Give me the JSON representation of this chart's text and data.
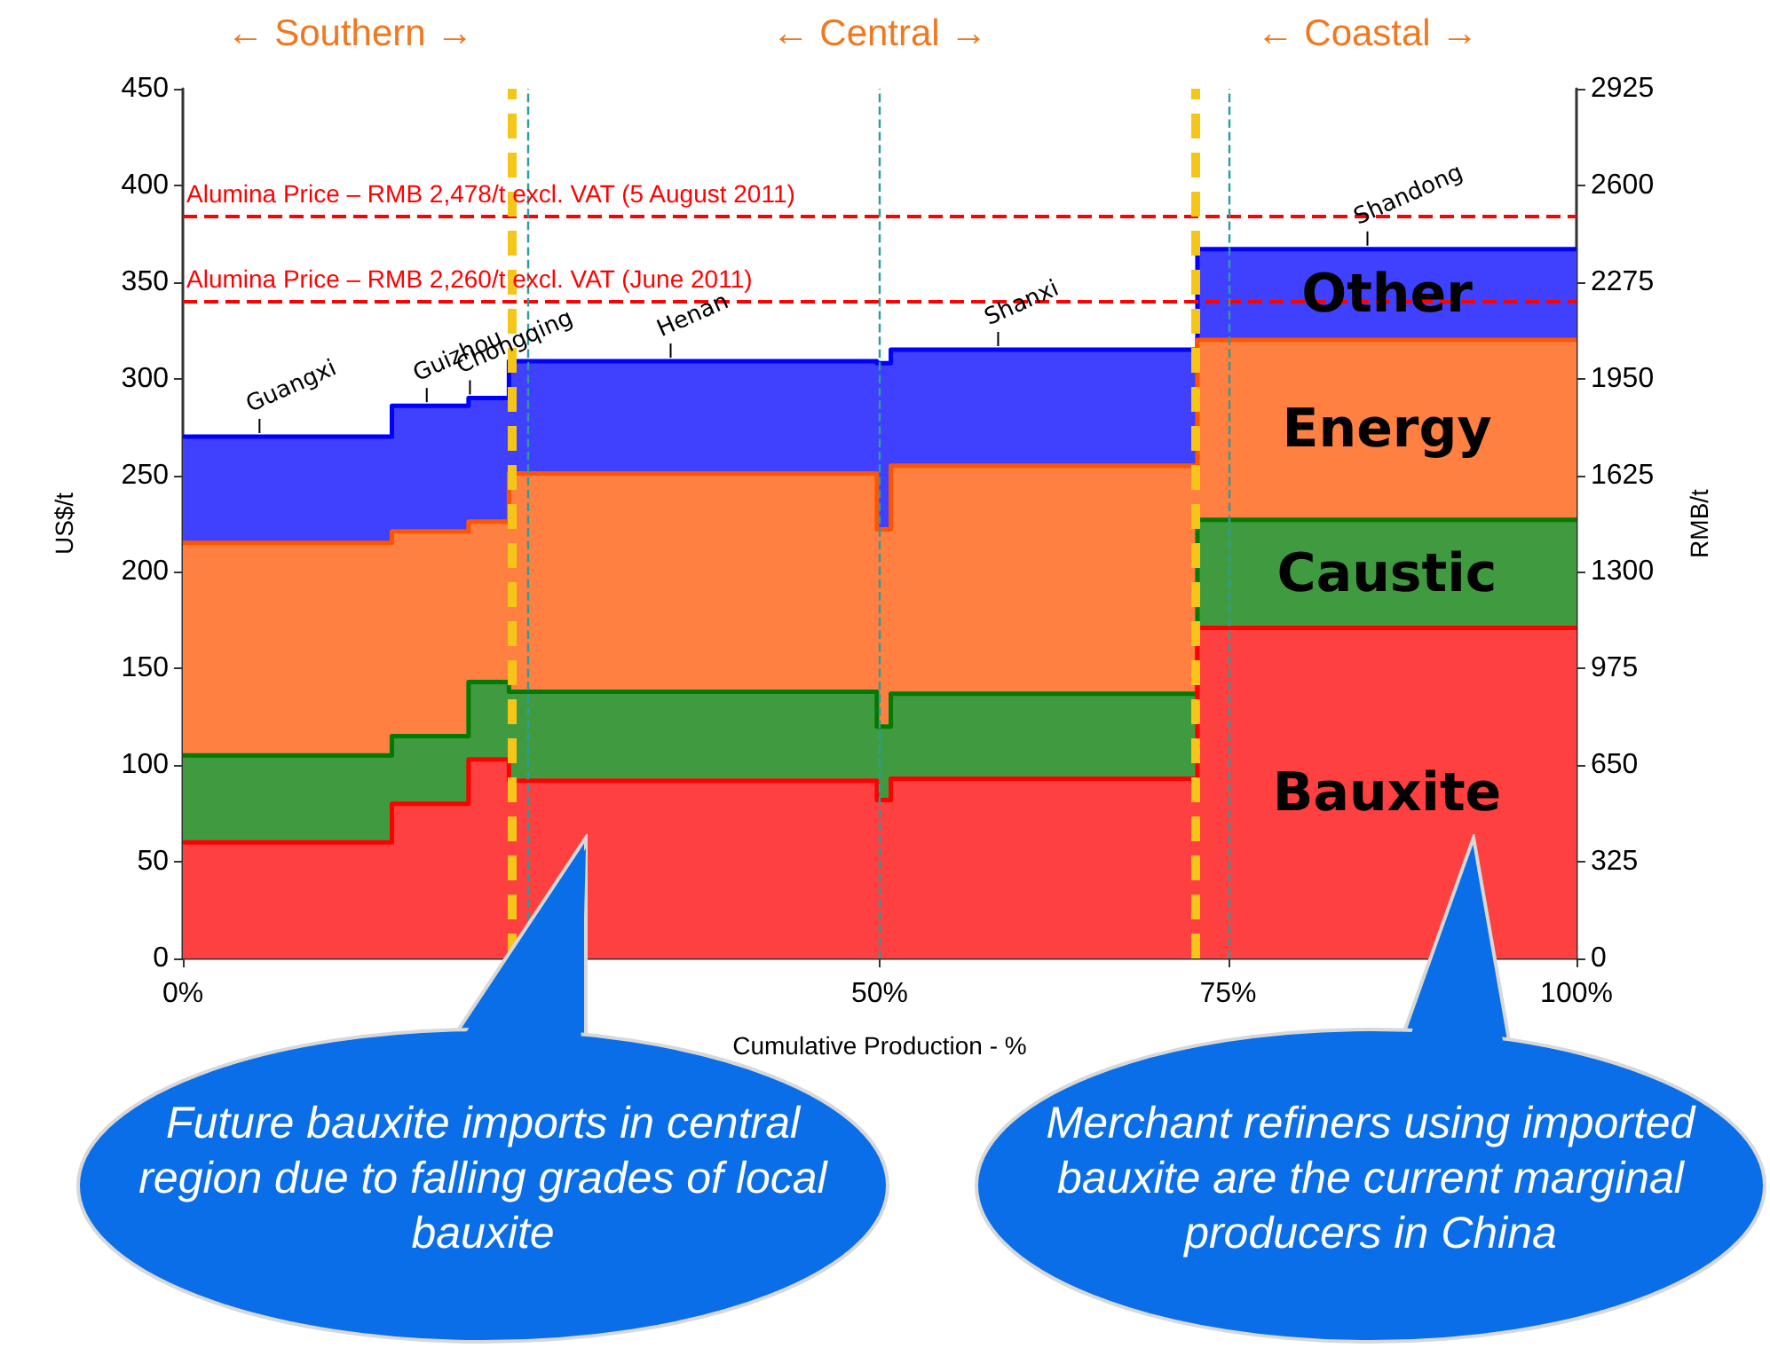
{
  "chart_data": {
    "type": "area",
    "stacked": true,
    "xlabel": "Cumulative Production - %",
    "ylabel": "US$/t",
    "y2label": "RMB/t",
    "x": [
      0,
      15,
      15,
      20.5,
      20.5,
      23.4,
      23.4,
      49.8,
      49.8,
      50.8,
      50.8,
      72.8,
      72.8,
      100
    ],
    "series": [
      {
        "name": "Bauxite",
        "color": "#ff0000",
        "values": [
          60,
          60,
          80,
          80,
          103,
          103,
          92,
          92,
          82,
          82,
          93,
          93,
          171,
          171
        ]
      },
      {
        "name": "Caustic",
        "color": "#007a00",
        "values": [
          45,
          45,
          35,
          35,
          40,
          40,
          46,
          46,
          38,
          38,
          44,
          44,
          56,
          56
        ]
      },
      {
        "name": "Energy",
        "color": "#ff5500",
        "values": [
          110,
          110,
          106,
          106,
          83,
          83,
          113,
          113,
          102,
          102,
          118,
          118,
          93,
          93
        ]
      },
      {
        "name": "Other",
        "color": "#0000ff",
        "values": [
          55,
          55,
          65,
          65,
          64,
          64,
          58,
          58,
          86,
          86,
          60,
          60,
          47,
          47
        ]
      }
    ],
    "xlim": [
      0,
      100
    ],
    "xticks": [
      {
        "value": 0,
        "label": "0%"
      },
      {
        "value": 50,
        "label": "50%"
      },
      {
        "value": 75,
        "label": "75%"
      },
      {
        "value": 100,
        "label": "100%"
      }
    ],
    "ylim": [
      0,
      450
    ],
    "yticks": [
      0,
      50,
      100,
      150,
      200,
      250,
      300,
      350,
      400,
      450
    ],
    "y2lim": [
      0,
      2925
    ],
    "y2ticks": [
      0,
      325,
      650,
      975,
      1300,
      1625,
      1950,
      2275,
      2600,
      2925
    ],
    "ref_lines": [
      {
        "axis": "y",
        "value": 384,
        "label": "Alumina Price – RMB 2,478/t excl. VAT (5 August 2011)",
        "color": "#ff0000",
        "line_style": "dashed"
      },
      {
        "axis": "y",
        "value": 340,
        "label": "Alumina Price – RMB 2,260/t excl. VAT (June 2011)",
        "color": "#ff0000",
        "line_style": "dashed"
      },
      {
        "axis": "x",
        "value": 24.8,
        "color": "#2a9d9d",
        "line_style": "dashed"
      },
      {
        "axis": "x",
        "value": 50,
        "color": "#2a9d9d",
        "line_style": "dashed"
      },
      {
        "axis": "x",
        "value": 75,
        "color": "#2a9d9d",
        "line_style": "dashed"
      },
      {
        "axis": "x",
        "value": 23.6,
        "color": "#f5c518",
        "line_style": "dashed"
      },
      {
        "axis": "x",
        "value": 72.6,
        "color": "#f5c518",
        "line_style": "dashed"
      }
    ],
    "annotations": [
      "← Southern →",
      "← Central →",
      "← Coastal →",
      {
        "text": "Guangxi",
        "x": 5.5,
        "y": 270
      },
      {
        "text": "Guizhou",
        "x": 17.5,
        "y": 286
      },
      {
        "text": "Chongqing",
        "x": 20.6,
        "y": 290
      },
      {
        "text": "Henan",
        "x": 35,
        "y": 309
      },
      {
        "text": "Shanxi",
        "x": 58.5,
        "y": 315
      },
      {
        "text": "Shandong",
        "x": 85,
        "y": 367
      },
      "Future bauxite imports in central region due to falling grades of local bauxite",
      "Merchant refiners using imported bauxite are the current marginal producers in China"
    ],
    "grid": false,
    "legend": false,
    "marker": "none",
    "line_style": "solid"
  }
}
